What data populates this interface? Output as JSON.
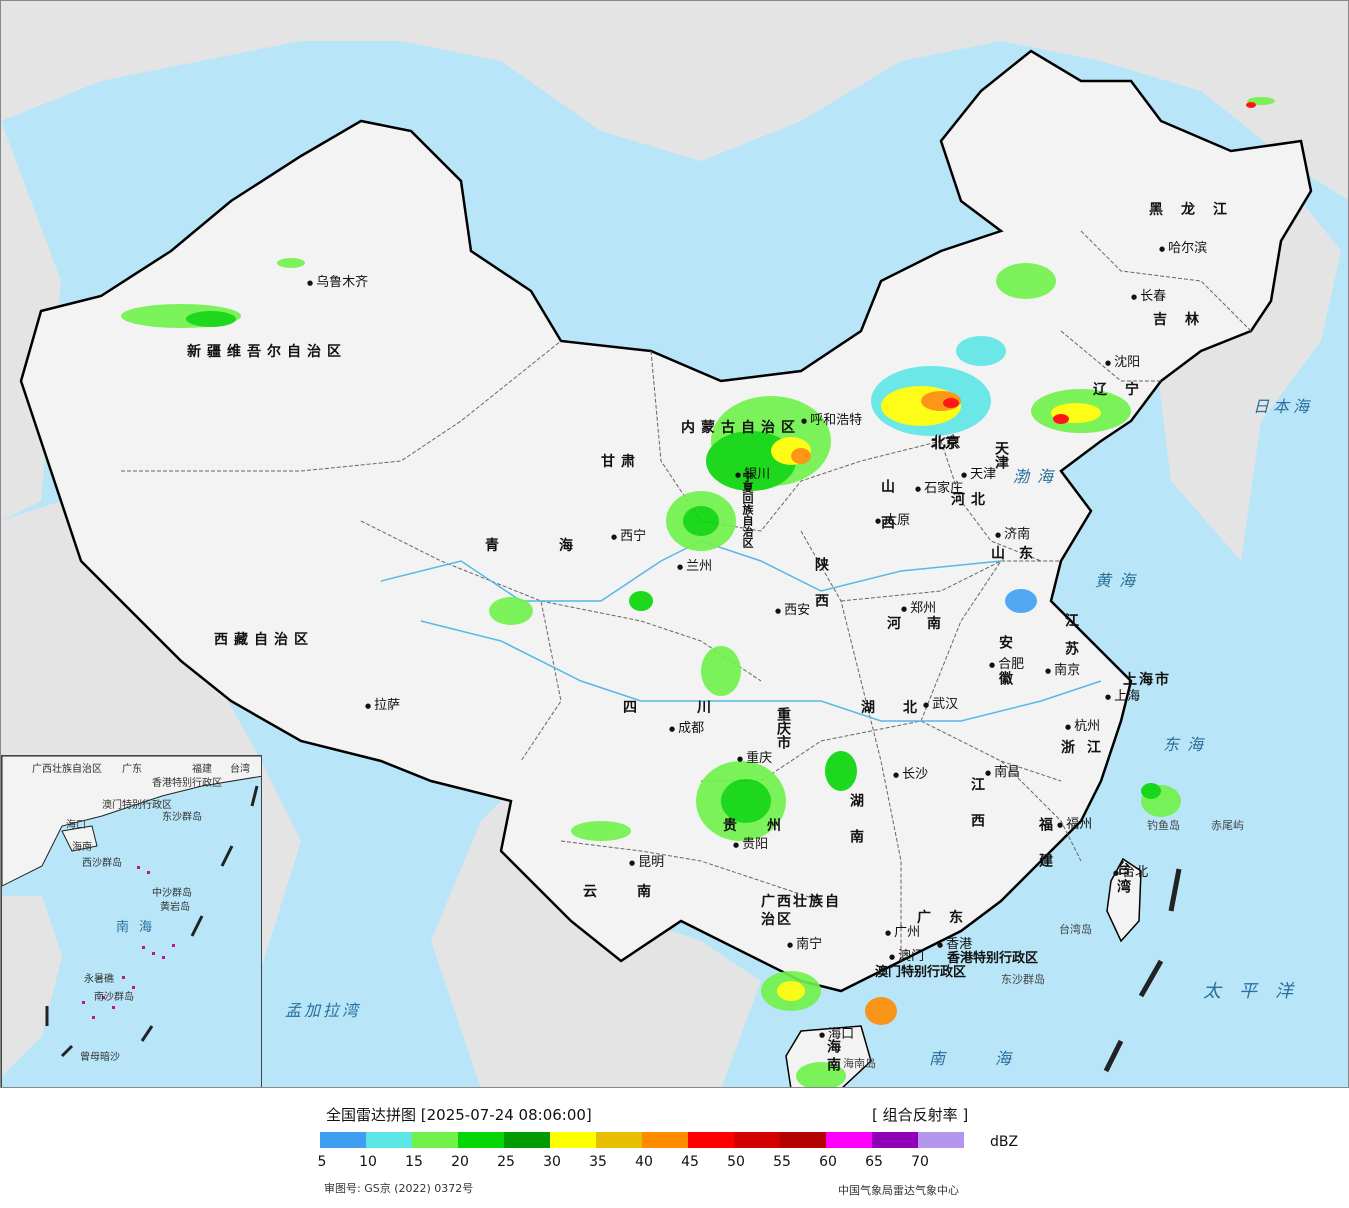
{
  "map": {
    "provinces": [
      "新疆维吾尔自治区",
      "西藏自治区",
      "青海",
      "甘肃",
      "内蒙古自治区",
      "黑龙江",
      "吉林",
      "辽宁",
      "河北",
      "山西",
      "陕西",
      "宁夏回族自治区",
      "四川",
      "云南",
      "贵州",
      "重庆市",
      "湖北",
      "湖南",
      "河南",
      "山东",
      "江苏",
      "安徽",
      "浙江",
      "江西",
      "福建",
      "广东",
      "广西壮族自治区",
      "海南",
      "台湾",
      "上海市",
      "北京",
      "天津",
      "香港特别行政区",
      "澳门特别行政区"
    ],
    "cities": [
      "乌鲁木齐",
      "拉萨",
      "西宁",
      "兰州",
      "银川",
      "呼和浩特",
      "北京",
      "天津",
      "石家庄",
      "太原",
      "济南",
      "郑州",
      "西安",
      "成都",
      "重庆",
      "贵阳",
      "昆明",
      "南宁",
      "广州",
      "澳门",
      "香港",
      "海口",
      "长沙",
      "武汉",
      "南昌",
      "合肥",
      "南京",
      "杭州",
      "上海",
      "福州",
      "台北",
      "沈阳",
      "长春",
      "哈尔滨"
    ],
    "seas": [
      "渤海",
      "黄海",
      "东海",
      "南海",
      "太平洋",
      "日本海",
      "孟加拉湾"
    ],
    "islands": [
      "钓鱼岛",
      "赤尾屿",
      "台湾岛",
      "东沙群岛",
      "海南岛"
    ],
    "inset_labels": [
      "广西壮族自治区",
      "广东",
      "福建",
      "台湾",
      "香港特别行政区",
      "澳门特别行政区",
      "海口",
      "海南",
      "东沙群岛",
      "中沙群岛",
      "黄岩岛",
      "南海",
      "南沙群岛",
      "永暑礁",
      "曾母暗沙",
      "西沙群岛"
    ]
  },
  "legend": {
    "title": "全国雷达拼图 [2025-07-24 08:06:00]",
    "product": "[ 组合反射率 ]",
    "unit": "dBZ",
    "ticks": [
      "5",
      "10",
      "15",
      "20",
      "25",
      "30",
      "35",
      "40",
      "45",
      "50",
      "55",
      "60",
      "65",
      "70"
    ],
    "colors": [
      "#3f9ef2",
      "#5de6e6",
      "#70f24a",
      "#06d606",
      "#029a02",
      "#ffff00",
      "#e6c000",
      "#ff8c00",
      "#ff0000",
      "#d40000",
      "#b50000",
      "#ff00ff",
      "#9000b8",
      "#b496ef"
    ],
    "review_no": "审图号: GS京 (2022) 0372号",
    "source": "中国气象局雷达气象中心"
  }
}
